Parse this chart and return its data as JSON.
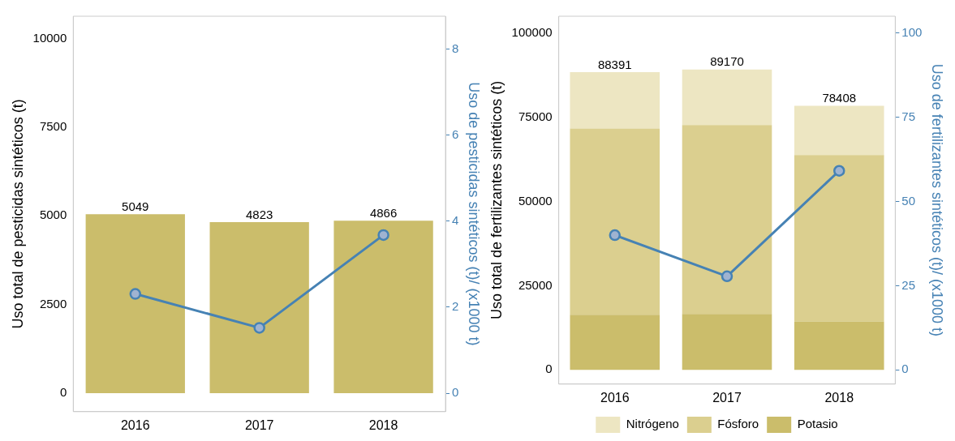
{
  "chart_data": [
    {
      "type": "bar",
      "categories": [
        "2016",
        "2017",
        "2018"
      ],
      "ylabel": "Uso total de pesticidas sintéticos (t)",
      "y2label": "Uso de pesticidas sintéticos (t)/ (x1000 t)",
      "ylim": [
        -520,
        10630
      ],
      "yticks": [
        0,
        2500,
        5000,
        7500,
        10000
      ],
      "y2lim": [
        -0.43,
        8.77
      ],
      "y2ticks": [
        0,
        2,
        4,
        6,
        8
      ],
      "grid": false,
      "legend": false,
      "series": [
        {
          "color": "#cbbd6b",
          "values": [
            5049,
            4823,
            4866
          ],
          "value_labels": [
            "5049",
            "4823",
            "4866"
          ]
        },
        {
          "type": "line",
          "axis": "y2",
          "color": "#4682b4",
          "marker": "circle",
          "line_style": "solid",
          "values": [
            2.31,
            1.52,
            3.68
          ]
        }
      ]
    },
    {
      "type": "bar",
      "stacked": true,
      "categories": [
        "2016",
        "2017",
        "2018"
      ],
      "ylabel": "Uso total de fertilizantes sintéticos (t)",
      "y2label": "Uso de fertilizantes sintéticos (t)/ (x1000 t)",
      "ylim": [
        -4200,
        105000
      ],
      "yticks": [
        0,
        25000,
        50000,
        75000,
        100000
      ],
      "y2lim": [
        -4.2,
        105
      ],
      "y2ticks": [
        0,
        25,
        50,
        75,
        100
      ],
      "grid": false,
      "legend": "bottom",
      "totals": [
        "88391",
        "89170",
        "78408"
      ],
      "series": [
        {
          "name": "Potasio",
          "color": "#cbbd6b",
          "values": [
            16400,
            16600,
            14400
          ]
        },
        {
          "name": "Fósforo",
          "color": "#dbcf8f",
          "values": [
            55300,
            56100,
            49400
          ]
        },
        {
          "name": "Nitrógeno",
          "color": "#ede6c2",
          "values": [
            16691,
            16470,
            14608
          ]
        },
        {
          "type": "line",
          "axis": "y2",
          "color": "#4682b4",
          "marker": "circle",
          "line_style": "solid",
          "values": [
            40.0,
            27.8,
            59.1
          ]
        }
      ]
    }
  ]
}
